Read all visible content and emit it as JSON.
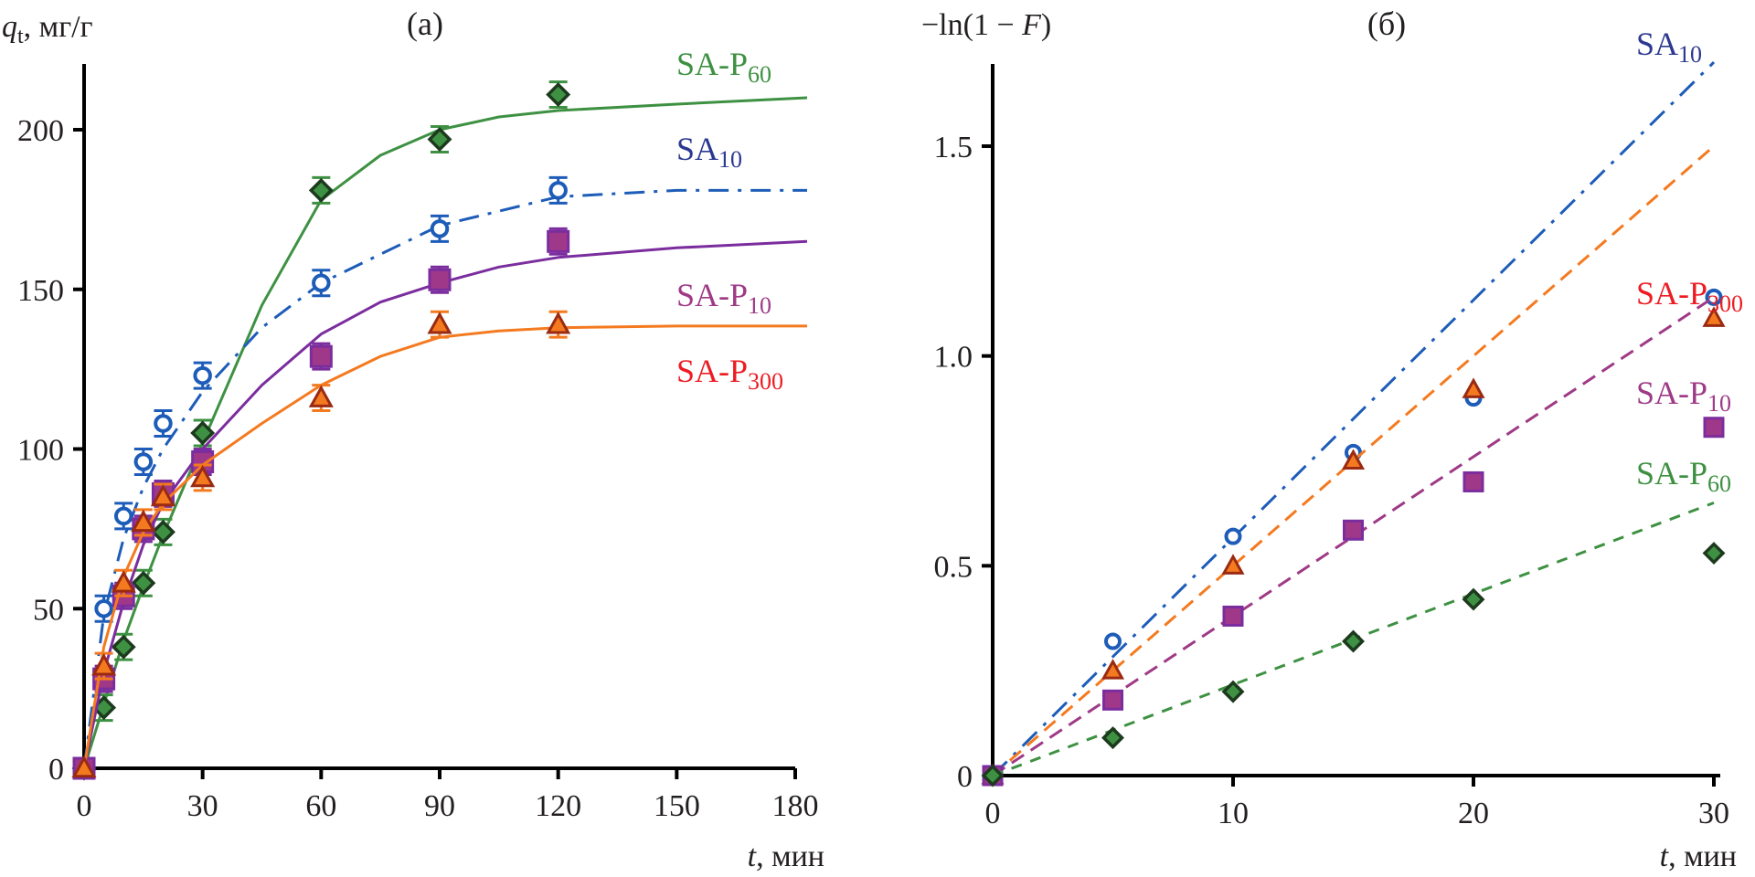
{
  "chart_data": [
    {
      "type": "scatter",
      "panel_label": "(a)",
      "title": "",
      "ylabel_main": "q",
      "ylabel_sub": "t",
      "ylabel_unit": ", мг/г",
      "xlabel_var": "t",
      "xlabel_unit": ", мин",
      "xlim": [
        0,
        180
      ],
      "ylim": [
        0,
        215
      ],
      "xticks": [
        0,
        30,
        60,
        90,
        120,
        150,
        180
      ],
      "yticks": [
        0,
        50,
        100,
        150,
        200
      ],
      "grid": false,
      "error_bar": 4,
      "series": [
        {
          "name": "SA-P60",
          "label_main": "SA-P",
          "label_sub": "60",
          "color": "#3e9142",
          "label_color": "#3e9142",
          "marker": "diamond",
          "fit_style": "solid",
          "x": [
            0,
            5,
            10,
            15,
            20,
            30,
            60,
            90,
            120
          ],
          "y": [
            0,
            19,
            38,
            58,
            74,
            105,
            181,
            197,
            211
          ],
          "fit_x": [
            0,
            5,
            10,
            15,
            20,
            30,
            45,
            60,
            75,
            90,
            105,
            120,
            150,
            183
          ],
          "fit_y": [
            0,
            20,
            40,
            57,
            73,
            102,
            145,
            178,
            192,
            200,
            204,
            206,
            208,
            210
          ]
        },
        {
          "name": "SA10",
          "label_main": "SA",
          "label_sub": "10",
          "color": "#1d5cb8",
          "label_color": "#2b3990",
          "marker": "circle-open",
          "fit_style": "dashdot",
          "x": [
            0,
            5,
            10,
            15,
            20,
            30,
            60,
            90,
            120
          ],
          "y": [
            0,
            50,
            79,
            96,
            108,
            123,
            152,
            169,
            181
          ],
          "fit_x": [
            0,
            5,
            10,
            15,
            20,
            30,
            45,
            60,
            90,
            120,
            150,
            183
          ],
          "fit_y": [
            0,
            48,
            72,
            88,
            100,
            118,
            138,
            152,
            170,
            179,
            181,
            181
          ]
        },
        {
          "name": "SA-P10",
          "label_main": "SA-P",
          "label_sub": "10",
          "color": "#7b2d9e",
          "label_color": "#9e3a86",
          "marker": "square",
          "fit_style": "solid",
          "x": [
            0,
            5,
            10,
            15,
            20,
            30,
            60,
            90,
            120
          ],
          "y": [
            0,
            28,
            54,
            75,
            86,
            96,
            129,
            153,
            165
          ],
          "fit_x": [
            0,
            5,
            10,
            15,
            20,
            30,
            45,
            60,
            75,
            90,
            105,
            120,
            150,
            183
          ],
          "fit_y": [
            0,
            30,
            52,
            70,
            83,
            100,
            120,
            136,
            146,
            152,
            157,
            160,
            163,
            165
          ]
        },
        {
          "name": "SA-P300",
          "label_main": "SA-P",
          "label_sub": "300",
          "color": "#f47a20",
          "label_color": "#ed1c24",
          "marker": "triangle",
          "fit_style": "solid",
          "x": [
            0,
            5,
            10,
            15,
            20,
            30,
            60,
            90,
            120
          ],
          "y": [
            0,
            32,
            58,
            77,
            85,
            91,
            116,
            139,
            139
          ],
          "fit_x": [
            0,
            5,
            10,
            15,
            20,
            30,
            45,
            60,
            75,
            90,
            105,
            120,
            150,
            183
          ],
          "fit_y": [
            0,
            38,
            60,
            74,
            83,
            95,
            108,
            120,
            129,
            135,
            137,
            138,
            138.5,
            138.5
          ]
        }
      ]
    },
    {
      "type": "scatter",
      "panel_label": "(б)",
      "title": "",
      "ylabel": "−ln(1 − F)",
      "ylabel_pre": "−ln(1 − ",
      "ylabel_var": "F",
      "ylabel_post": ")",
      "xlabel_var": "t",
      "xlabel_unit": ", мин",
      "xlim": [
        0,
        30
      ],
      "ylim": [
        0,
        1.7
      ],
      "xticks": [
        0,
        10,
        20,
        30
      ],
      "yticks": [
        0,
        0.5,
        1.0,
        1.5
      ],
      "ytick_labels": [
        "0",
        "0.5",
        "1.0",
        "1.5"
      ],
      "grid": false,
      "series": [
        {
          "name": "SA10",
          "label_main": "SA",
          "label_sub": "10",
          "color": "#1d5cb8",
          "label_color": "#2b3990",
          "marker": "circle-open",
          "fit_style": "dashdot",
          "x": [
            0,
            5,
            10,
            15,
            20,
            30
          ],
          "y": [
            0,
            0.32,
            0.57,
            0.77,
            0.9,
            1.14
          ],
          "fit_x": [
            0,
            30
          ],
          "fit_y": [
            0,
            1.7
          ]
        },
        {
          "name": "SA-P300",
          "label_main": "SA-P",
          "label_sub": "300",
          "color": "#f47a20",
          "label_color": "#ed1c24",
          "marker": "triangle",
          "fit_style": "dash",
          "x": [
            0,
            5,
            10,
            15,
            20,
            30
          ],
          "y": [
            0,
            0.25,
            0.5,
            0.75,
            0.92,
            1.09
          ],
          "fit_x": [
            0,
            30
          ],
          "fit_y": [
            0,
            1.5
          ]
        },
        {
          "name": "SA-P10",
          "label_main": "SA-P",
          "label_sub": "10",
          "color": "#9e3a86",
          "label_color": "#9e3a86",
          "marker": "square",
          "fit_style": "dash",
          "x": [
            0,
            5,
            10,
            15,
            20,
            30
          ],
          "y": [
            0,
            0.18,
            0.38,
            0.585,
            0.7,
            0.83
          ],
          "fit_x": [
            0,
            30
          ],
          "fit_y": [
            0,
            1.14
          ]
        },
        {
          "name": "SA-P60",
          "label_main": "SA-P",
          "label_sub": "60",
          "color": "#3e9142",
          "label_color": "#3e9142",
          "marker": "diamond",
          "fit_style": "dash-fine",
          "x": [
            0,
            5,
            10,
            15,
            20,
            30
          ],
          "y": [
            0,
            0.09,
            0.2,
            0.32,
            0.42,
            0.53
          ],
          "fit_x": [
            0,
            30
          ],
          "fit_y": [
            0,
            0.65
          ]
        }
      ]
    }
  ]
}
